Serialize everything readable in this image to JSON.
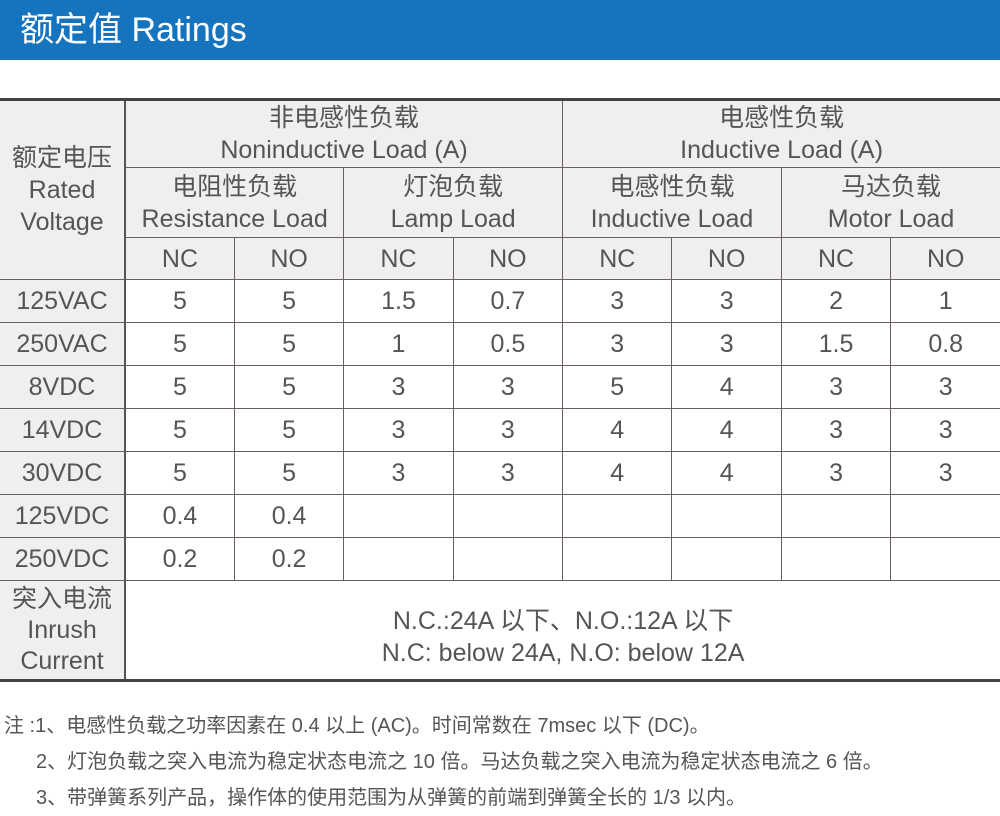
{
  "banner": {
    "title": "额定值 Ratings"
  },
  "colors": {
    "banner": "#1673bd",
    "header_bg": "#efefef",
    "text": "#555555"
  },
  "table": {
    "rated_voltage": {
      "zh": "额定电压",
      "en1": "Rated",
      "en2": "Voltage"
    },
    "noninductive": {
      "zh": "非电感性负载",
      "en": "Noninductive Load (A)"
    },
    "inductive": {
      "zh": "电感性负载",
      "en": "Inductive Load (A)"
    },
    "subgroups": [
      {
        "zh": "电阻性负载",
        "en": "Resistance Load"
      },
      {
        "zh": "灯泡负载",
        "en": "Lamp Load"
      },
      {
        "zh": "电感性负载",
        "en": "Inductive Load"
      },
      {
        "zh": "马达负载",
        "en": "Motor Load"
      }
    ],
    "contacts": [
      "NC",
      "NO",
      "NC",
      "NO",
      "NC",
      "NO",
      "NC",
      "NO"
    ],
    "rows": [
      {
        "voltage": "125VAC",
        "values": [
          "5",
          "5",
          "1.5",
          "0.7",
          "3",
          "3",
          "2",
          "1"
        ]
      },
      {
        "voltage": "250VAC",
        "values": [
          "5",
          "5",
          "1",
          "0.5",
          "3",
          "3",
          "1.5",
          "0.8"
        ]
      },
      {
        "voltage": "8VDC",
        "values": [
          "5",
          "5",
          "3",
          "3",
          "5",
          "4",
          "3",
          "3"
        ]
      },
      {
        "voltage": "14VDC",
        "values": [
          "5",
          "5",
          "3",
          "3",
          "4",
          "4",
          "3",
          "3"
        ]
      },
      {
        "voltage": "30VDC",
        "values": [
          "5",
          "5",
          "3",
          "3",
          "4",
          "4",
          "3",
          "3"
        ]
      },
      {
        "voltage": "125VDC",
        "values": [
          "0.4",
          "0.4",
          "",
          "",
          "",
          "",
          "",
          ""
        ]
      },
      {
        "voltage": "250VDC",
        "values": [
          "0.2",
          "0.2",
          "",
          "",
          "",
          "",
          "",
          ""
        ]
      }
    ],
    "inrush": {
      "label_zh": "突入电流",
      "label_en1": "Inrush",
      "label_en2": "Current",
      "value_zh": "N.C.:24A 以下、N.O.:12A 以下",
      "value_en": "N.C: below 24A, N.O: below 12A"
    }
  },
  "notes": [
    "注 :1、电感性负载之功率因素在 0.4 以上 (AC)。时间常数在 7msec 以下 (DC)。",
    "2、灯泡负载之突入电流为稳定状态电流之 10 倍。马达负载之突入电流为稳定状态电流之 6 倍。",
    "3、带弹簧系列产品，操作体的使用范围为从弹簧的前端到弹簧全长的 1/3 以内。"
  ]
}
